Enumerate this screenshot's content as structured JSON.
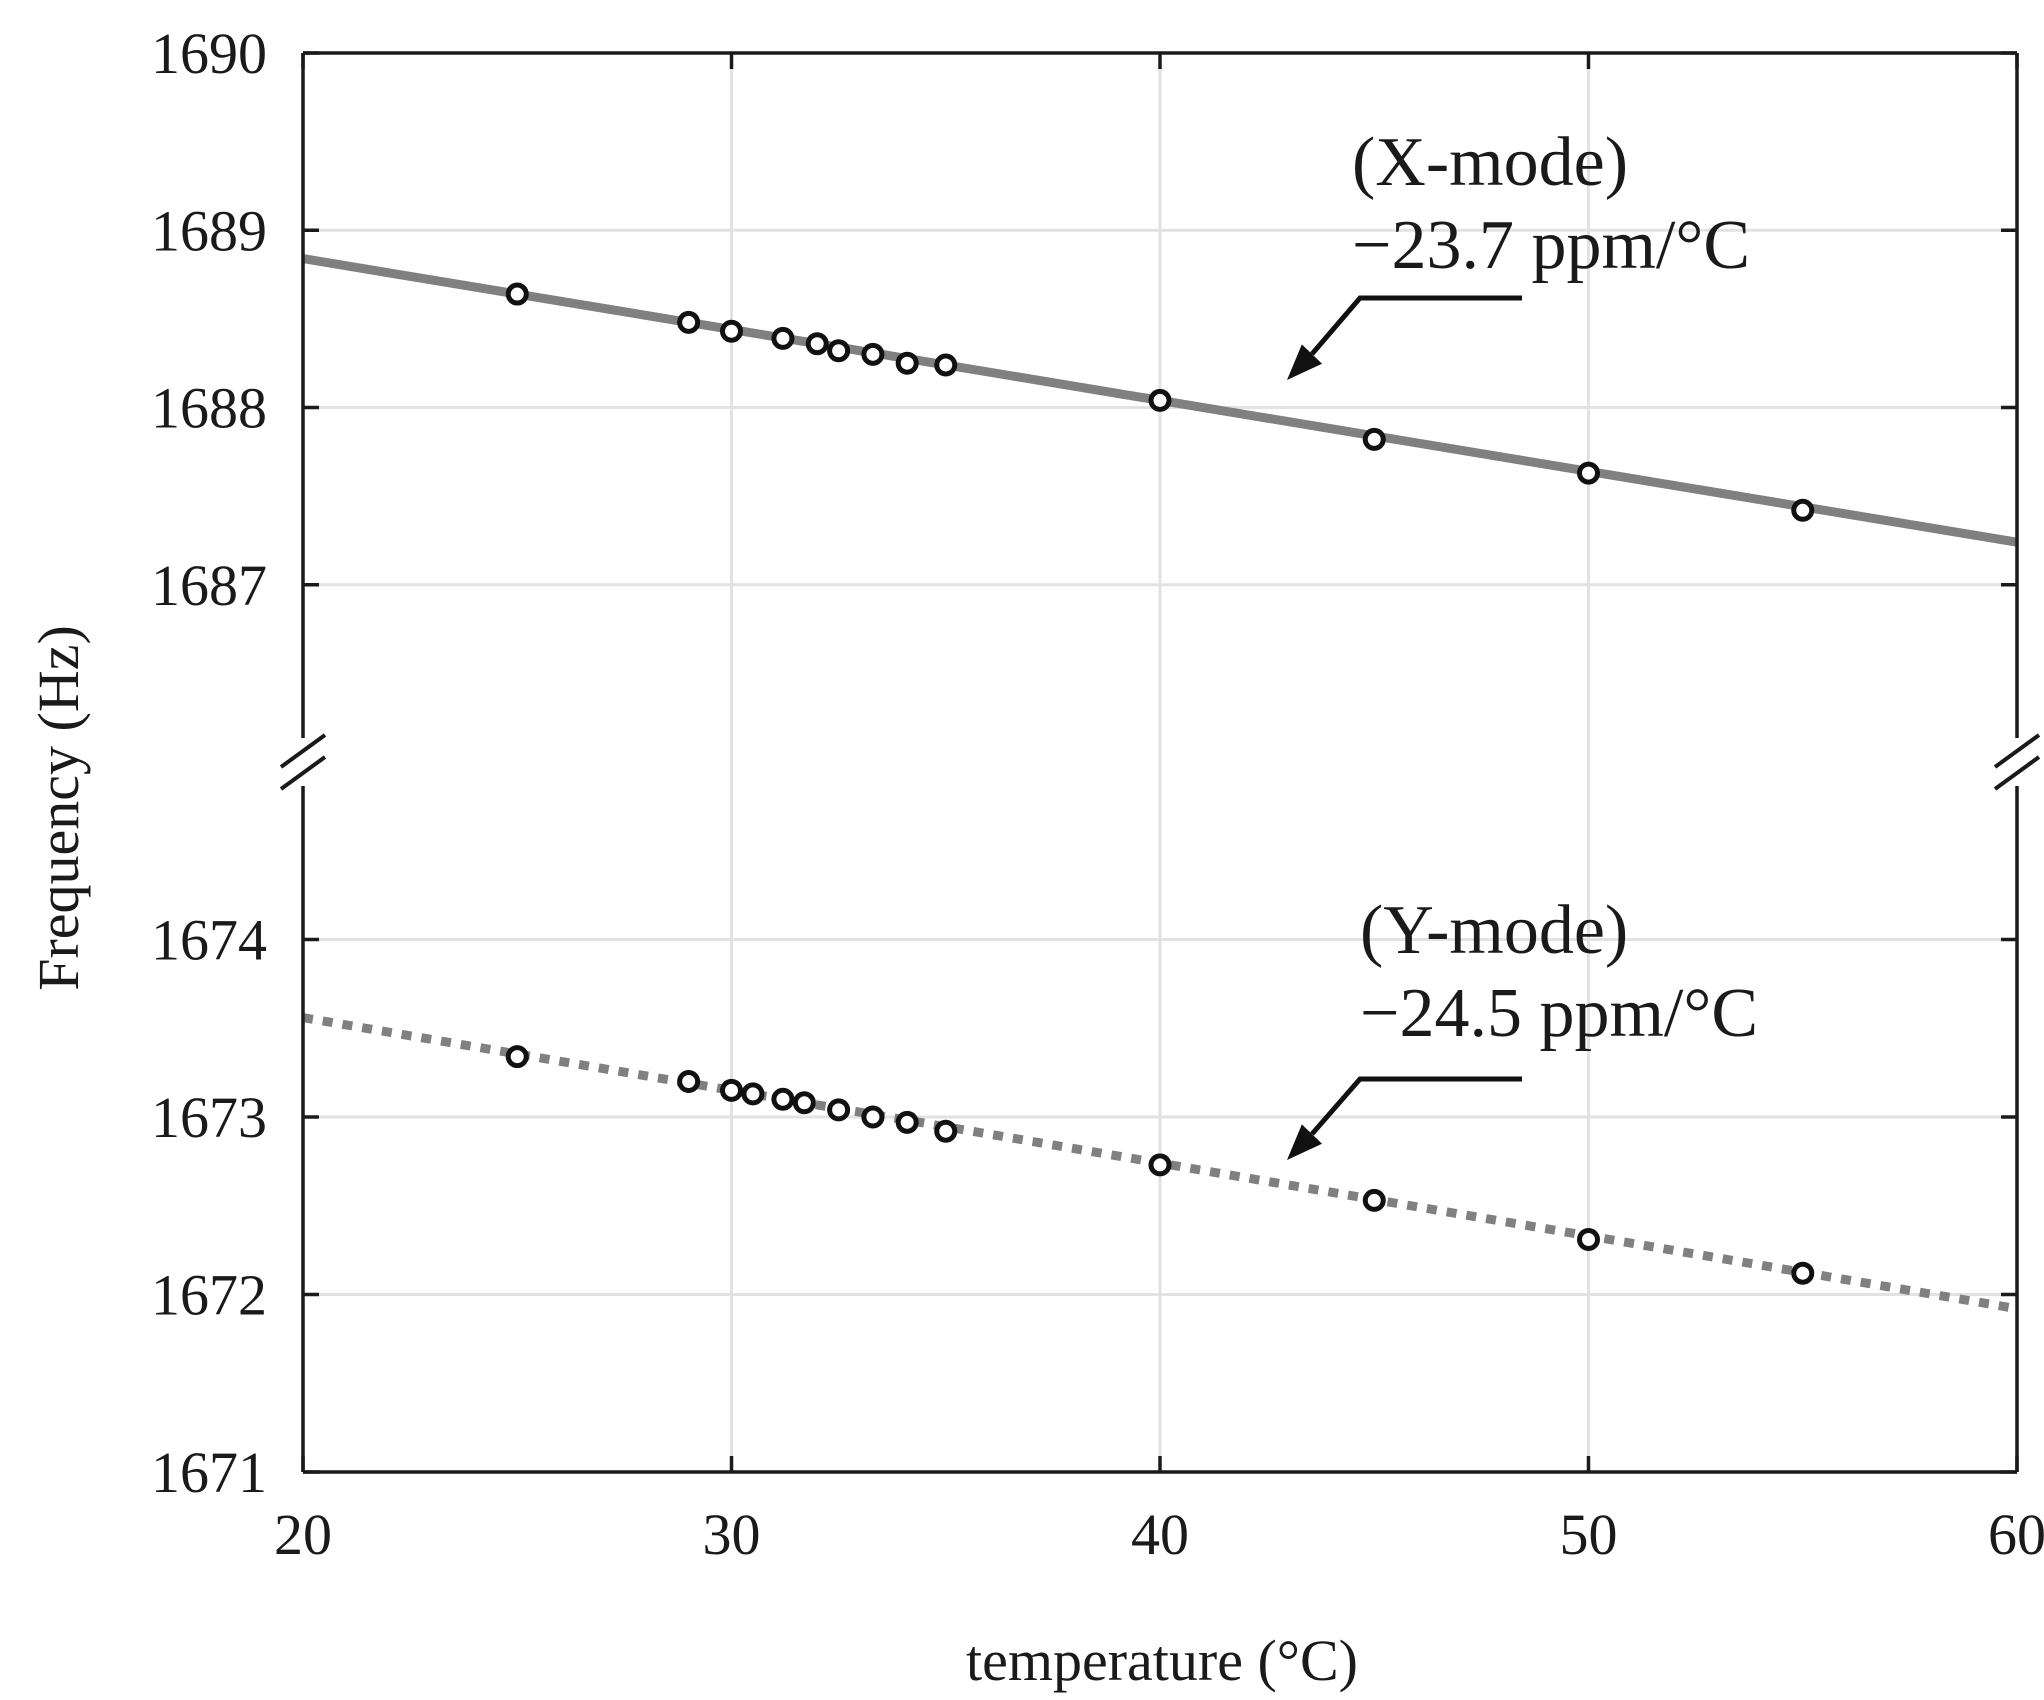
{
  "chart_data": {
    "type": "scatter",
    "xlabel": "temperature (°C)",
    "ylabel": "Frequency (Hz)",
    "xlim": [
      20,
      60
    ],
    "x_ticks": [
      20,
      30,
      40,
      50,
      60
    ],
    "grid": true,
    "broken_y_axis": true,
    "upper_panel": {
      "ylim": [
        1686.0,
        1690
      ],
      "y_ticks": [
        1687,
        1688,
        1689,
        1690
      ]
    },
    "lower_panel": {
      "ylim": [
        1671,
        1675.0
      ],
      "y_ticks": [
        1671,
        1672,
        1673,
        1674
      ]
    },
    "series": [
      {
        "name": "X-mode",
        "label": "(X-mode)",
        "slope_label": "−23.7 ppm/°C",
        "color": "#808080",
        "line_style": "solid",
        "fit": {
          "x": [
            20,
            60
          ],
          "y": [
            1688.84,
            1687.24
          ]
        },
        "x": [
          25,
          29,
          30,
          31.2,
          32,
          32.5,
          33.3,
          34.1,
          35,
          40,
          45,
          50,
          55
        ],
        "y": [
          1688.64,
          1688.48,
          1688.43,
          1688.39,
          1688.36,
          1688.32,
          1688.3,
          1688.25,
          1688.24,
          1688.04,
          1687.82,
          1687.63,
          1687.42
        ]
      },
      {
        "name": "Y-mode",
        "label": "(Y-mode)",
        "slope_label": "−24.5 ppm/°C",
        "color": "#808080",
        "line_style": "dotted",
        "fit": {
          "x": [
            20,
            60
          ],
          "y": [
            1673.56,
            1671.92
          ]
        },
        "x": [
          25,
          29,
          30,
          30.5,
          31.2,
          31.7,
          32.5,
          33.3,
          34.1,
          35,
          40,
          45,
          50,
          55
        ],
        "y": [
          1673.34,
          1673.2,
          1673.15,
          1673.13,
          1673.1,
          1673.08,
          1673.04,
          1673.0,
          1672.97,
          1672.92,
          1672.73,
          1672.53,
          1672.31,
          1672.12
        ]
      }
    ]
  }
}
